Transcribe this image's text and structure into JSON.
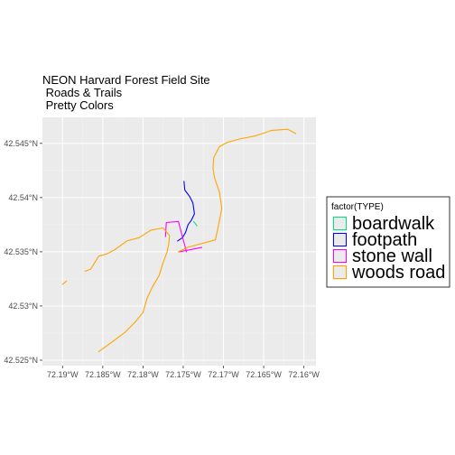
{
  "title_lines": [
    "NEON Harvard Forest Field Site",
    " Roads & Trails",
    " Pretty Colors"
  ],
  "legend": {
    "title": "factor(TYPE)",
    "items": [
      {
        "label": "boardwalk",
        "color": "#00E08A"
      },
      {
        "label": "footpath",
        "color": "#0000FF"
      },
      {
        "label": "stone wall",
        "color": "#FF00FF"
      },
      {
        "label": "woods road",
        "color": "#FFA500"
      }
    ]
  },
  "chart_data": {
    "type": "line",
    "title": "NEON Harvard Forest Field Site\n Roads & Trails\n Pretty Colors",
    "xlim": [
      -72.1925,
      -72.1585
    ],
    "ylim": [
      42.5245,
      42.5474
    ],
    "x_ticks": [
      -72.19,
      -72.185,
      -72.18,
      -72.175,
      -72.17,
      -72.165,
      -72.16
    ],
    "x_tick_labels": [
      "72.19°W",
      "72.185°W",
      "72.18°W",
      "72.175°W",
      "72.17°W",
      "72.165°W",
      "72.16°W"
    ],
    "y_ticks": [
      42.525,
      42.53,
      42.535,
      42.54,
      42.545
    ],
    "y_tick_labels": [
      "42.525°N",
      "42.53°N",
      "42.535°N",
      "42.54°N",
      "42.545°N"
    ],
    "grid": true,
    "legend_position": "right",
    "series": [
      {
        "name": "boardwalk",
        "color": "#00E08A",
        "lines": [
          [
            [
              -72.1737,
              42.5378
            ],
            [
              -72.1733,
              42.5374
            ]
          ]
        ]
      },
      {
        "name": "footpath",
        "color": "#0000FF",
        "lines": [
          [
            [
              -72.1749,
              42.5415
            ],
            [
              -72.1748,
              42.5407
            ],
            [
              -72.1742,
              42.5401
            ],
            [
              -72.1738,
              42.5395
            ],
            [
              -72.1736,
              42.5385
            ],
            [
              -72.174,
              42.5379
            ],
            [
              -72.1744,
              42.5375
            ],
            [
              -72.1747,
              42.5368
            ],
            [
              -72.1751,
              42.5363
            ],
            [
              -72.1757,
              42.536
            ]
          ]
        ]
      },
      {
        "name": "stone wall",
        "color": "#FF00FF",
        "lines": [
          [
            [
              -72.1772,
              42.5364
            ],
            [
              -72.1771,
              42.5377
            ],
            [
              -72.1756,
              42.5378
            ],
            [
              -72.1746,
              42.535
            ]
          ],
          [
            [
              -72.1755,
              42.535
            ],
            [
              -72.1727,
              42.5354
            ]
          ]
        ]
      },
      {
        "name": "woods road",
        "color": "#FFA500",
        "lines": [
          [
            [
              -72.161,
              42.5459
            ],
            [
              -72.162,
              42.5463
            ],
            [
              -72.164,
              42.5462
            ],
            [
              -72.166,
              42.5457
            ],
            [
              -72.168,
              42.5454
            ],
            [
              -72.1695,
              42.5451
            ],
            [
              -72.1705,
              42.5447
            ],
            [
              -72.1712,
              42.5437
            ],
            [
              -72.1713,
              42.5427
            ],
            [
              -72.1711,
              42.5418
            ],
            [
              -72.1705,
              42.5405
            ],
            [
              -72.1702,
              42.539
            ],
            [
              -72.1706,
              42.5375
            ],
            [
              -72.171,
              42.5361
            ],
            [
              -72.1745,
              42.5354
            ],
            [
              -72.1756,
              42.535
            ]
          ],
          [
            [
              -72.1768,
              42.5357
            ],
            [
              -72.1767,
              42.5365
            ],
            [
              -72.1775,
              42.5372
            ],
            [
              -72.179,
              42.537
            ],
            [
              -72.1805,
              42.5363
            ],
            [
              -72.182,
              42.536
            ],
            [
              -72.1835,
              42.5352
            ],
            [
              -72.1845,
              42.5348
            ],
            [
              -72.1855,
              42.5346
            ],
            [
              -72.186,
              42.534
            ],
            [
              -72.1865,
              42.5334
            ],
            [
              -72.1872,
              42.5332
            ]
          ],
          [
            [
              -72.1768,
              42.5357
            ],
            [
              -72.177,
              42.535
            ],
            [
              -72.1775,
              42.534
            ],
            [
              -72.178,
              42.5328
            ],
            [
              -72.1788,
              42.5318
            ],
            [
              -72.1795,
              42.5307
            ],
            [
              -72.18,
              42.5294
            ],
            [
              -72.181,
              42.5285
            ],
            [
              -72.1822,
              42.5276
            ],
            [
              -72.184,
              42.5266
            ],
            [
              -72.1855,
              42.5258
            ]
          ],
          [
            [
              -72.19,
              42.532
            ],
            [
              -72.1895,
              42.5323
            ]
          ]
        ]
      }
    ]
  }
}
